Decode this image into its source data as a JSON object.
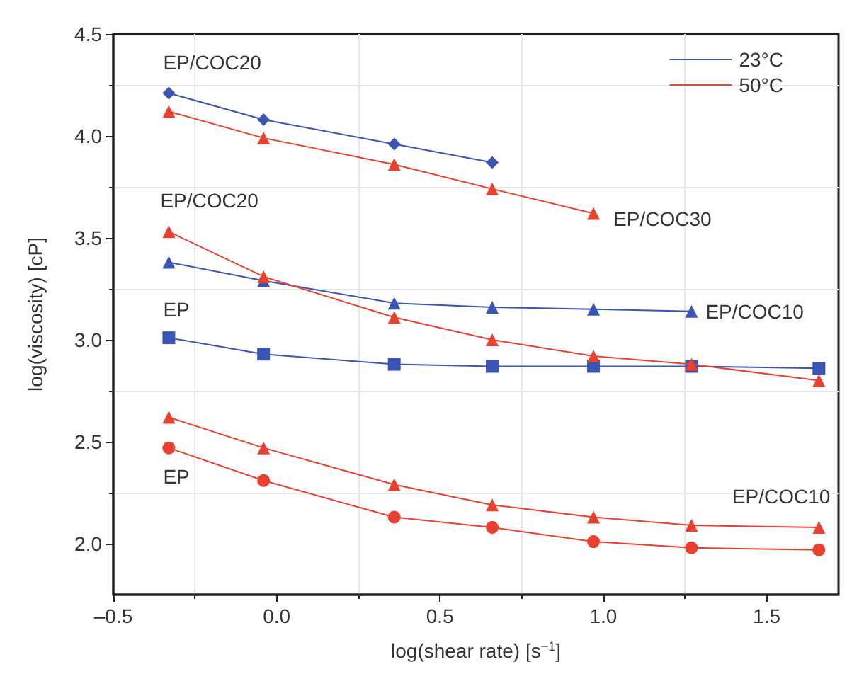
{
  "chart_data": {
    "type": "line",
    "xlabel": "log(shear rate) [s$^{−1}$]",
    "ylabel": "log(viscosity) [cP]",
    "x": [
      -0.33,
      -0.04,
      0.36,
      0.66,
      0.97,
      1.27,
      1.66
    ],
    "series": [
      {
        "name": "23°C",
        "color": "#3a55b4",
        "marker": "diamond",
        "values": [
          4.21,
          4.08,
          3.96,
          3.87,
          null,
          null,
          null
        ]
      },
      {
        "name": "50°C",
        "color": "#e8412f",
        "marker": "triangle",
        "values": [
          4.12,
          3.99,
          3.86,
          3.74,
          3.62,
          null,
          null
        ]
      },
      {
        "color": "#e8412f",
        "marker": "triangle",
        "values": [
          3.53,
          3.31,
          3.11,
          3.0,
          2.92,
          2.88,
          2.8
        ]
      },
      {
        "color": "#3a55b4",
        "marker": "triangle",
        "values": [
          3.38,
          3.29,
          3.18,
          3.16,
          3.15,
          3.14,
          null
        ]
      },
      {
        "color": "#3a55b4",
        "marker": "square",
        "values": [
          3.01,
          2.93,
          2.88,
          2.87,
          2.87,
          2.87,
          2.86
        ]
      },
      {
        "color": "#e8412f",
        "marker": "triangle",
        "values": [
          2.62,
          2.47,
          2.29,
          2.19,
          2.13,
          2.09,
          2.08
        ]
      },
      {
        "color": "#e8412f",
        "marker": "circle",
        "values": [
          2.47,
          2.31,
          2.13,
          2.08,
          2.01,
          1.98,
          1.97
        ]
      }
    ],
    "annotations": [
      {
        "text": "EP/COC20",
        "x": -0.33,
        "y": 4.21
      },
      {
        "text": "EP/COC30",
        "x": 0.97,
        "y": 3.62
      },
      {
        "text": "EP/COC20",
        "x": -0.33,
        "y": 3.53
      },
      {
        "text": "EP/COC10",
        "x": 1.27,
        "y": 3.14
      },
      {
        "text": "EP",
        "x": -0.33,
        "y": 3.01
      },
      {
        "text": "EP",
        "x": -0.33,
        "y": 2.47
      },
      {
        "text": "EP/COC10",
        "x": 1.66,
        "y": 2.08
      }
    ],
    "xlim": [
      -0.5,
      1.72
    ],
    "xticks": [
      {
        "value": -0.5,
        "label": "–0.5"
      },
      {
        "value": 0,
        "label": "0.0"
      },
      0.5,
      {
        "value": 1,
        "label": "1.0"
      },
      1.5
    ],
    "ylim": [
      1.75,
      4.5
    ],
    "yticks": [
      {
        "value": 2,
        "label": "2.0"
      },
      2.5,
      {
        "value": 3,
        "label": "3.0"
      },
      3.5,
      {
        "value": 4,
        "label": "4.0"
      },
      4.5
    ],
    "grid": true,
    "legend": "top right"
  }
}
